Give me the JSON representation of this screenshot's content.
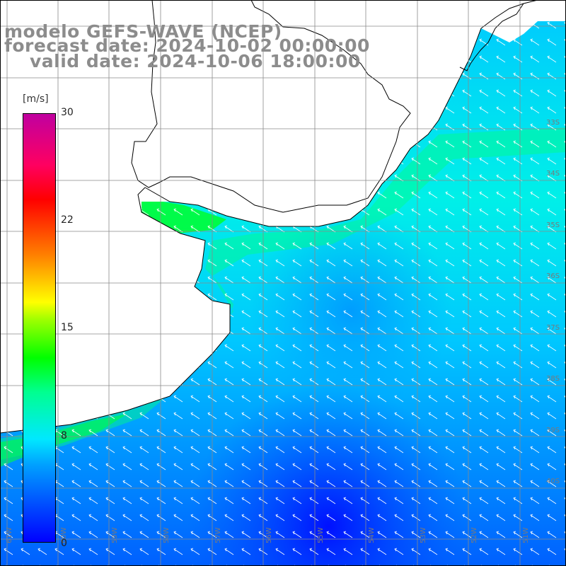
{
  "title_lines": {
    "model": "modelo GEFS-WAVE (NCEP)",
    "forecast": "forecast date: 2024-10-02 00:00:00",
    "valid": "valid date: 2024-10-06 18:00:00"
  },
  "colorbar": {
    "unit": "[m/s]",
    "ticks": [
      "30",
      "22",
      "15",
      "8",
      "0"
    ],
    "min": 0,
    "max": 30
  },
  "lon_labels": [
    "61W",
    "60W",
    "59W",
    "58W",
    "57W",
    "56W",
    "55W",
    "54W",
    "53W",
    "52W",
    "51W"
  ],
  "lat_labels": [
    "33S",
    "34S",
    "35S",
    "36S",
    "37S",
    "38S",
    "39S",
    "40S"
  ],
  "colors": {
    "land": "#ffffff",
    "coast": "#000000",
    "grid": "#8a8a8a",
    "arrows": "#ffffff",
    "title": "#8c8c8c"
  },
  "map": {
    "lon_range": [
      -61.5,
      -50.5
    ],
    "lat_range": [
      -41.8,
      -31.2
    ],
    "variable": "wind speed with direction arrows",
    "units": "m/s"
  }
}
